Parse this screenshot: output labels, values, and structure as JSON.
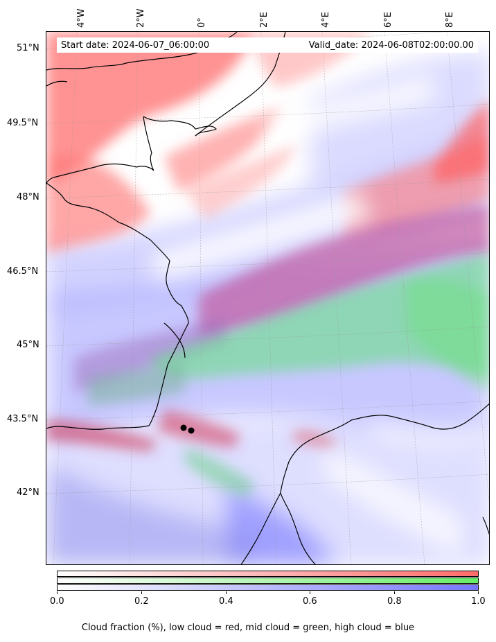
{
  "map": {
    "start_date_label": "Start date: 2024-06-07_06:00:00",
    "valid_date_label": "Valid_date: 2024-06-08T02:00:00.00",
    "lon_labels": [
      "4°W",
      "2°W",
      "0°",
      "2°E",
      "4°E",
      "6°E",
      "8°E"
    ],
    "lat_labels": [
      "51°N",
      "49.5°N",
      "48°N",
      "46.5°N",
      "45°N",
      "43.5°N",
      "42°N"
    ],
    "colorbar": {
      "ticks": [
        "0.0",
        "0.2",
        "0.4",
        "0.6",
        "0.8",
        "1.0"
      ],
      "low_color": "#ff6b6b",
      "mid_color": "#66ee66",
      "high_color": "#7777ff"
    },
    "caption": "Cloud fraction (%), low cloud = red, mid cloud = green, high cloud = blue",
    "cloud_colors": {
      "low": "#ff6f6f",
      "mid": "#5ee27a",
      "high": "#8c8cff",
      "low_mid": "#c85aa0",
      "coast": "#000000"
    }
  }
}
